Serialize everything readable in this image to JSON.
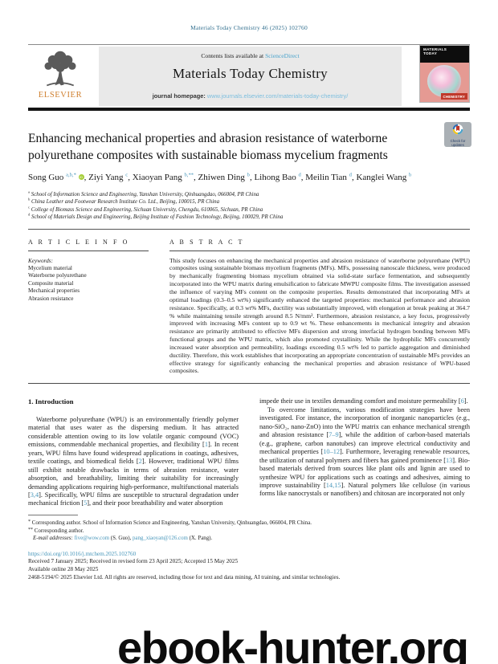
{
  "header": {
    "citation": "Materials Today Chemistry 46 (2025) 102760",
    "contents_prefix": "Contents lists available at ",
    "sciencedirect": "ScienceDirect",
    "journal_title": "Materials Today Chemistry",
    "homepage_label": "journal homepage: ",
    "homepage_url": "www.journals.elsevier.com/materials-today-chemistry/",
    "elsevier_label": "ELSEVIER",
    "cover": {
      "line1": "MATERIALS",
      "line2": "TODAY",
      "badge": "CHEMISTRY"
    }
  },
  "article": {
    "title": "Enhancing mechanical properties and abrasion resistance of waterborne polyurethane composites with sustainable biomass mycelium fragments",
    "check_badge": {
      "line1": "Check for",
      "line2": "updates"
    },
    "orcid_label": "iD",
    "authors": [
      {
        "name": "Song Guo",
        "sup": "a,b,*",
        "orcid": true
      },
      {
        "name": "Ziyi Yang",
        "sup": "c"
      },
      {
        "name": "Xiaoyan Pang",
        "sup": "b,**"
      },
      {
        "name": "Zhiwen Ding",
        "sup": "b"
      },
      {
        "name": "Lihong Bao",
        "sup": "d"
      },
      {
        "name": "Meilin Tian",
        "sup": "d"
      },
      {
        "name": "Kanglei Wang",
        "sup": "b"
      }
    ],
    "affiliations": [
      {
        "sup": "a",
        "text": "School of Information Science and Engineering, Yanshan University, Qinhuangdao, 066004, PR China"
      },
      {
        "sup": "b",
        "text": "China Leather and Footwear Research Institute Co. Ltd., Beijing, 100015, PR China"
      },
      {
        "sup": "c",
        "text": "College of Biomass Science and Engineering, Sichuan University, Chengdu, 610065, Sichuan, PR China"
      },
      {
        "sup": "d",
        "text": "School of Materials Design and Engineering, Beijing Institute of Fashion Technology, Beijing, 100029, PR China"
      }
    ]
  },
  "info": {
    "heading": "A R T I C L E  I N F O",
    "keywords_label": "Keywords:",
    "keywords": [
      "Mycelium material",
      "Waterborne polyurethane",
      "Composite material",
      "Mechanical properties",
      "Abrasion resistance"
    ]
  },
  "abstract": {
    "heading": "A B S T R A C T",
    "text": "This study focuses on enhancing the mechanical properties and abrasion resistance of waterborne polyurethane (WPU) composites using sustainable biomass mycelium fragments (MFs). MFs, possessing nanoscale thickness, were produced by mechanically fragmenting biomass mycelium obtained via solid-state surface fermentation, and subsequently incorporated into the WPU matrix during emulsification to fabricate MWPU composite films. The investigation assessed the influence of varying MFs content on the composite properties. Results demonstrated that incorporating MFs at optimal loadings (0.3–0.5 wt%) significantly enhanced the targeted properties: mechanical performance and abrasion resistance. Specifically, at 0.3 wt% MFs, ductility was substantially improved, with elongation at break peaking at 364.7 % while maintaining tensile strength around 8.5 N/mm². Furthermore, abrasion resistance, a key focus, progressively improved with increasing MFs content up to 0.9 wt %. These enhancements in mechanical integrity and abrasion resistance are primarily attributed to effective MFs dispersion and strong interfacial hydrogen bonding between MFs functional groups and the WPU matrix, which also promoted crystallinity. While the hydrophilic MFs concurrently increased water absorption and permeability, loadings exceeding 0.5 wt% led to particle aggregation and diminished ductility. Therefore, this work establishes that incorporating an appropriate concentration of sustainable MFs provides an effective strategy for significantly enhancing the mechanical properties and abrasion resistance of WPU-based composites."
  },
  "intro": {
    "heading": "1. Introduction",
    "col1": [
      "Waterborne polyurethane (WPU) is an environmentally friendly polymer material that uses water as the dispersing medium. It has attracted considerable attention owing to its low volatile organic compound (VOC) emissions, commendable mechanical properties, and flexibility [1]. In recent years, WPU films have found widespread applications in coatings, adhesives, textile coatings, and biomedical fields [2]. However, traditional WPU films still exhibit notable drawbacks in terms of abrasion resistance, water absorption, and breathability, limiting their suitability for increasingly demanding applications requiring high-performance, multifunctional materials [3,4]. Specifically, WPU films are susceptible to structural degradation under mechanical friction [5], and their poor breathability and water absorption"
    ],
    "col2": [
      "impede their use in textiles demanding comfort and moisture permeability [6].",
      "To overcome limitations, various modification strategies have been investigated. For instance, the incorporation of inorganic nanoparticles (e.g., nano-SiO₂, nano-ZnO) into the WPU matrix can enhance mechanical strength and abrasion resistance [7–9], while the addition of carbon-based materials (e.g., graphene, carbon nanotubes) can improve electrical conductivity and mechanical properties [10–12]. Furthermore, leveraging renewable resources, the utilization of natural polymers and fibers has gained prominence [13]. Bio-based materials derived from sources like plant oils and lignin are used to synthesize WPU for applications such as coatings and adhesives, aiming to improve sustainability [14,15]. Natural polymers like cellulose (in various forms like nanocrystals or nanofibers) and chitosan are incorporated not only"
    ]
  },
  "footnotes": {
    "fn1": "Corresponding author. School of Information Science and Engineering, Yanshan University, Qinhuangdao, 066004, PR China.",
    "fn2": "Corresponding author.",
    "email_label": "E-mail addresses:",
    "email1": "five@wow.com",
    "email1_owner": "(S. Guo),",
    "email2": "pang_xiaoyan@126.com",
    "email2_owner": "(X. Pang)."
  },
  "footer": {
    "doi": "https://doi.org/10.1016/j.mtchem.2025.102760",
    "received": "Received 7 January 2025; Received in revised form 23 April 2025; Accepted 15 May 2025",
    "available": "Available online 28 May 2025",
    "copyright": "2468-5194/© 2025 Elsevier Ltd. All rights are reserved, including those for text and data mining, AI training, and similar technologies."
  },
  "watermark": "ebook-hunter.org"
}
